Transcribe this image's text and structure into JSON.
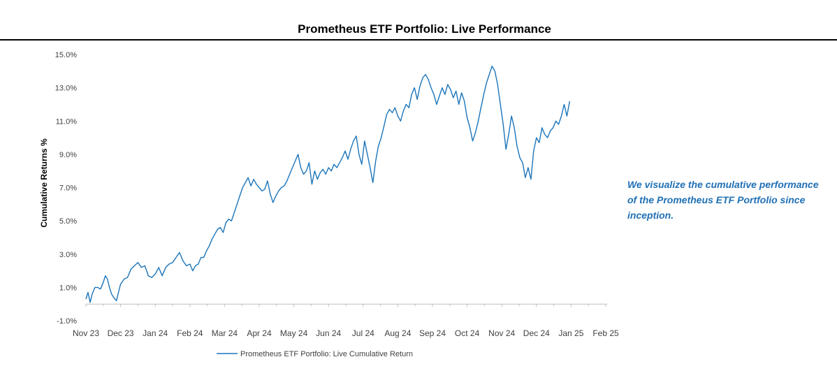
{
  "title": "Prometheus ETF Portfolio: Live Performance",
  "side_note": "We visualize the cumulative performance of the Prometheus ETF Portfolio since inception.",
  "colors": {
    "line": "#1b75bb",
    "axis": "#bfbfbf",
    "note": "#1f6fb5",
    "text": "#404040"
  },
  "chart_data": {
    "type": "line",
    "title": "Prometheus ETF Portfolio: Live Performance",
    "xlabel": "",
    "ylabel": "Cumulative Returns %",
    "ylim": [
      -1.0,
      15.0
    ],
    "y_ticks": [
      "15.0%",
      "13.0%",
      "11.0%",
      "9.0%",
      "7.0%",
      "5.0%",
      "3.0%",
      "1.0%",
      "-1.0%"
    ],
    "x_ticks": [
      "Nov 23",
      "Dec 23",
      "Jan 24",
      "Feb 24",
      "Mar 24",
      "Apr 24",
      "May 24",
      "Jun 24",
      "Jul 24",
      "Aug 24",
      "Sep 24",
      "Oct 24",
      "Nov 24",
      "Dec 24",
      "Jan 25",
      "Feb 25"
    ],
    "grid": false,
    "legend": "bottom",
    "series": [
      {
        "name": "Prometheus ETF Portfolio: Live Cumulative Return",
        "points": [
          [
            0.0,
            0.3
          ],
          [
            0.06,
            0.7
          ],
          [
            0.12,
            0.1
          ],
          [
            0.18,
            0.6
          ],
          [
            0.26,
            1.0
          ],
          [
            0.34,
            1.0
          ],
          [
            0.42,
            0.9
          ],
          [
            0.5,
            1.3
          ],
          [
            0.56,
            1.7
          ],
          [
            0.62,
            1.5
          ],
          [
            0.68,
            1.0
          ],
          [
            0.74,
            0.6
          ],
          [
            0.8,
            0.4
          ],
          [
            0.88,
            0.2
          ],
          [
            1.0,
            1.2
          ],
          [
            1.1,
            1.5
          ],
          [
            1.2,
            1.6
          ],
          [
            1.3,
            2.1
          ],
          [
            1.4,
            2.3
          ],
          [
            1.5,
            2.5
          ],
          [
            1.6,
            2.2
          ],
          [
            1.7,
            2.3
          ],
          [
            1.8,
            1.7
          ],
          [
            1.9,
            1.6
          ],
          [
            2.0,
            1.8
          ],
          [
            2.1,
            2.2
          ],
          [
            2.2,
            1.7
          ],
          [
            2.3,
            2.2
          ],
          [
            2.4,
            2.4
          ],
          [
            2.5,
            2.5
          ],
          [
            2.6,
            2.8
          ],
          [
            2.7,
            3.1
          ],
          [
            2.8,
            2.6
          ],
          [
            2.9,
            2.3
          ],
          [
            3.0,
            2.4
          ],
          [
            3.08,
            2.0
          ],
          [
            3.16,
            2.3
          ],
          [
            3.24,
            2.4
          ],
          [
            3.32,
            2.8
          ],
          [
            3.4,
            2.8
          ],
          [
            3.48,
            3.2
          ],
          [
            3.56,
            3.5
          ],
          [
            3.64,
            3.9
          ],
          [
            3.72,
            4.2
          ],
          [
            3.8,
            4.5
          ],
          [
            3.88,
            4.6
          ],
          [
            3.96,
            4.3
          ],
          [
            4.04,
            4.9
          ],
          [
            4.12,
            5.1
          ],
          [
            4.2,
            5.0
          ],
          [
            4.28,
            5.5
          ],
          [
            4.36,
            6.0
          ],
          [
            4.44,
            6.5
          ],
          [
            4.52,
            7.0
          ],
          [
            4.6,
            7.3
          ],
          [
            4.68,
            7.6
          ],
          [
            4.76,
            7.1
          ],
          [
            4.84,
            7.5
          ],
          [
            4.92,
            7.2
          ],
          [
            5.0,
            7.0
          ],
          [
            5.08,
            6.8
          ],
          [
            5.16,
            6.9
          ],
          [
            5.24,
            7.4
          ],
          [
            5.32,
            6.6
          ],
          [
            5.4,
            6.1
          ],
          [
            5.48,
            6.5
          ],
          [
            5.56,
            6.8
          ],
          [
            5.64,
            7.0
          ],
          [
            5.72,
            7.1
          ],
          [
            5.8,
            7.4
          ],
          [
            5.88,
            7.8
          ],
          [
            5.96,
            8.2
          ],
          [
            6.04,
            8.6
          ],
          [
            6.12,
            9.0
          ],
          [
            6.2,
            8.2
          ],
          [
            6.28,
            7.8
          ],
          [
            6.36,
            8.0
          ],
          [
            6.44,
            8.5
          ],
          [
            6.52,
            7.2
          ],
          [
            6.6,
            8.0
          ],
          [
            6.68,
            7.5
          ],
          [
            6.76,
            7.9
          ],
          [
            6.84,
            8.1
          ],
          [
            6.92,
            7.8
          ],
          [
            7.0,
            8.2
          ],
          [
            7.08,
            8.0
          ],
          [
            7.16,
            8.4
          ],
          [
            7.24,
            8.2
          ],
          [
            7.32,
            8.5
          ],
          [
            7.4,
            8.8
          ],
          [
            7.48,
            9.2
          ],
          [
            7.56,
            8.7
          ],
          [
            7.64,
            9.3
          ],
          [
            7.72,
            9.8
          ],
          [
            7.8,
            10.1
          ],
          [
            7.88,
            9.0
          ],
          [
            7.96,
            8.4
          ],
          [
            8.04,
            9.8
          ],
          [
            8.12,
            9.0
          ],
          [
            8.2,
            8.2
          ],
          [
            8.28,
            7.3
          ],
          [
            8.36,
            8.6
          ],
          [
            8.44,
            9.5
          ],
          [
            8.52,
            10.0
          ],
          [
            8.6,
            10.7
          ],
          [
            8.68,
            11.4
          ],
          [
            8.76,
            11.7
          ],
          [
            8.84,
            11.5
          ],
          [
            8.92,
            11.8
          ],
          [
            9.0,
            11.3
          ],
          [
            9.08,
            11.0
          ],
          [
            9.16,
            11.6
          ],
          [
            9.24,
            12.0
          ],
          [
            9.32,
            11.8
          ],
          [
            9.4,
            12.6
          ],
          [
            9.48,
            13.0
          ],
          [
            9.56,
            12.3
          ],
          [
            9.64,
            13.1
          ],
          [
            9.72,
            13.6
          ],
          [
            9.8,
            13.8
          ],
          [
            9.88,
            13.5
          ],
          [
            9.96,
            13.0
          ],
          [
            10.04,
            12.6
          ],
          [
            10.12,
            12.0
          ],
          [
            10.2,
            12.5
          ],
          [
            10.28,
            13.0
          ],
          [
            10.36,
            12.6
          ],
          [
            10.44,
            13.2
          ],
          [
            10.52,
            12.9
          ],
          [
            10.6,
            12.4
          ],
          [
            10.68,
            12.8
          ],
          [
            10.76,
            12.0
          ],
          [
            10.84,
            12.7
          ],
          [
            10.92,
            12.2
          ],
          [
            11.0,
            11.2
          ],
          [
            11.08,
            10.6
          ],
          [
            11.16,
            9.8
          ],
          [
            11.24,
            10.3
          ],
          [
            11.32,
            11.0
          ],
          [
            11.4,
            11.8
          ],
          [
            11.48,
            12.6
          ],
          [
            11.56,
            13.3
          ],
          [
            11.64,
            13.8
          ],
          [
            11.72,
            14.3
          ],
          [
            11.8,
            14.0
          ],
          [
            11.88,
            13.2
          ],
          [
            11.96,
            12.0
          ],
          [
            12.04,
            10.8
          ],
          [
            12.12,
            9.3
          ],
          [
            12.2,
            10.2
          ],
          [
            12.28,
            11.3
          ],
          [
            12.36,
            10.6
          ],
          [
            12.44,
            9.5
          ],
          [
            12.52,
            8.8
          ],
          [
            12.6,
            8.5
          ],
          [
            12.68,
            7.6
          ],
          [
            12.76,
            8.2
          ],
          [
            12.84,
            7.5
          ],
          [
            12.92,
            9.2
          ],
          [
            13.0,
            10.0
          ],
          [
            13.08,
            9.7
          ],
          [
            13.16,
            10.6
          ],
          [
            13.24,
            10.2
          ],
          [
            13.32,
            10.0
          ],
          [
            13.4,
            10.4
          ],
          [
            13.48,
            10.6
          ],
          [
            13.56,
            11.0
          ],
          [
            13.64,
            10.8
          ],
          [
            13.72,
            11.3
          ],
          [
            13.8,
            12.0
          ],
          [
            13.88,
            11.3
          ],
          [
            13.96,
            12.2
          ]
        ]
      }
    ]
  }
}
